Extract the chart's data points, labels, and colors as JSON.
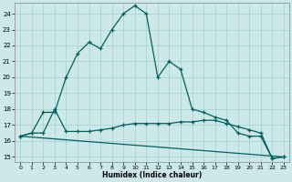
{
  "title": "",
  "xlabel": "Humidex (Indice chaleur)",
  "xlim": [
    -0.5,
    23.5
  ],
  "ylim": [
    14.7,
    24.7
  ],
  "yticks": [
    15,
    16,
    17,
    18,
    19,
    20,
    21,
    22,
    23,
    24
  ],
  "xticks": [
    0,
    1,
    2,
    3,
    4,
    5,
    6,
    7,
    8,
    9,
    10,
    11,
    12,
    13,
    14,
    15,
    16,
    17,
    18,
    19,
    20,
    21,
    22,
    23
  ],
  "bg_color": "#cce8e8",
  "grid_color": "#aad4d4",
  "line_color": "#006060",
  "line1_x": [
    0,
    1,
    2,
    3,
    4,
    5,
    6,
    7,
    8,
    9,
    10,
    11,
    12,
    13,
    14,
    15,
    16,
    17,
    18,
    19,
    20,
    21,
    22,
    23
  ],
  "line1_y": [
    16.3,
    16.5,
    17.8,
    17.8,
    20.0,
    21.5,
    22.2,
    21.8,
    23.0,
    24.0,
    24.5,
    24.0,
    20.0,
    21.0,
    20.5,
    18.0,
    17.8,
    17.5,
    17.3,
    16.5,
    16.3,
    16.3,
    14.9,
    15.0
  ],
  "line2_x": [
    0,
    1,
    2,
    3,
    4,
    5,
    6,
    7,
    8,
    9,
    10,
    11,
    12,
    13,
    14,
    15,
    16,
    17,
    18,
    19,
    20,
    21,
    22,
    23
  ],
  "line2_y": [
    16.3,
    16.5,
    16.5,
    18.0,
    16.6,
    16.6,
    16.6,
    16.7,
    16.8,
    17.0,
    17.1,
    17.1,
    17.1,
    17.1,
    17.2,
    17.2,
    17.3,
    17.3,
    17.1,
    16.9,
    16.7,
    16.5,
    14.9,
    15.0
  ],
  "line3_x": [
    0,
    23
  ],
  "line3_y": [
    16.3,
    15.0
  ]
}
